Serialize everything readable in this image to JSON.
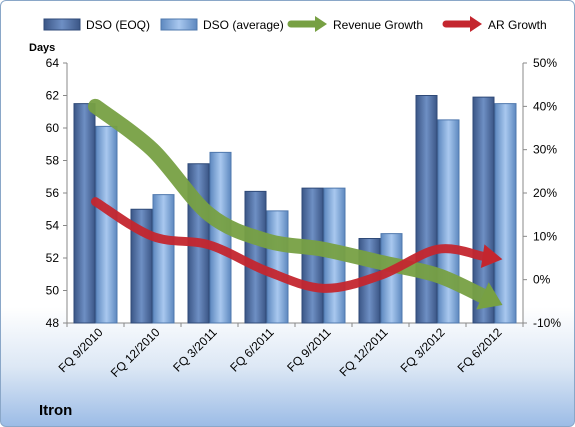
{
  "chart_data": {
    "type": "bar",
    "company": "Itron",
    "ylabel_left": "Days",
    "categories": [
      "FQ 9/2010",
      "FQ 12/2010",
      "FQ 3/2011",
      "FQ 6/2011",
      "FQ 9/2011",
      "FQ 12/2011",
      "FQ 3/2012",
      "FQ 6/2012"
    ],
    "series": [
      {
        "name": "DSO (EOQ)",
        "axis": "left",
        "kind": "bar",
        "color": "#4f6fa4",
        "values": [
          61.5,
          55.0,
          57.8,
          56.1,
          56.3,
          53.2,
          62.0,
          61.9
        ]
      },
      {
        "name": "DSO (average)",
        "axis": "left",
        "kind": "bar",
        "color": "#7fa8d8",
        "values": [
          60.1,
          55.9,
          58.5,
          54.9,
          56.3,
          53.5,
          60.5,
          61.5
        ]
      },
      {
        "name": "Revenue Growth",
        "axis": "right",
        "kind": "arrow-line",
        "color": "#77a043",
        "values": [
          40,
          30,
          15,
          9,
          7,
          4,
          1,
          -5
        ]
      },
      {
        "name": "AR Growth",
        "axis": "right",
        "kind": "arrow-line",
        "color": "#c4262e",
        "values": [
          18,
          10,
          8,
          2,
          -2,
          1,
          7,
          5
        ]
      }
    ],
    "ylim_left": [
      48,
      64
    ],
    "yticks_left": [
      48,
      50,
      52,
      54,
      56,
      58,
      60,
      62,
      64
    ],
    "ylim_right": [
      -10,
      50
    ],
    "yticks_right": [
      "-10%",
      "0%",
      "10%",
      "20%",
      "30%",
      "40%",
      "50%"
    ],
    "yticks_right_values": [
      -10,
      0,
      10,
      20,
      30,
      40,
      50
    ],
    "grid": false,
    "legend_position": "top"
  }
}
